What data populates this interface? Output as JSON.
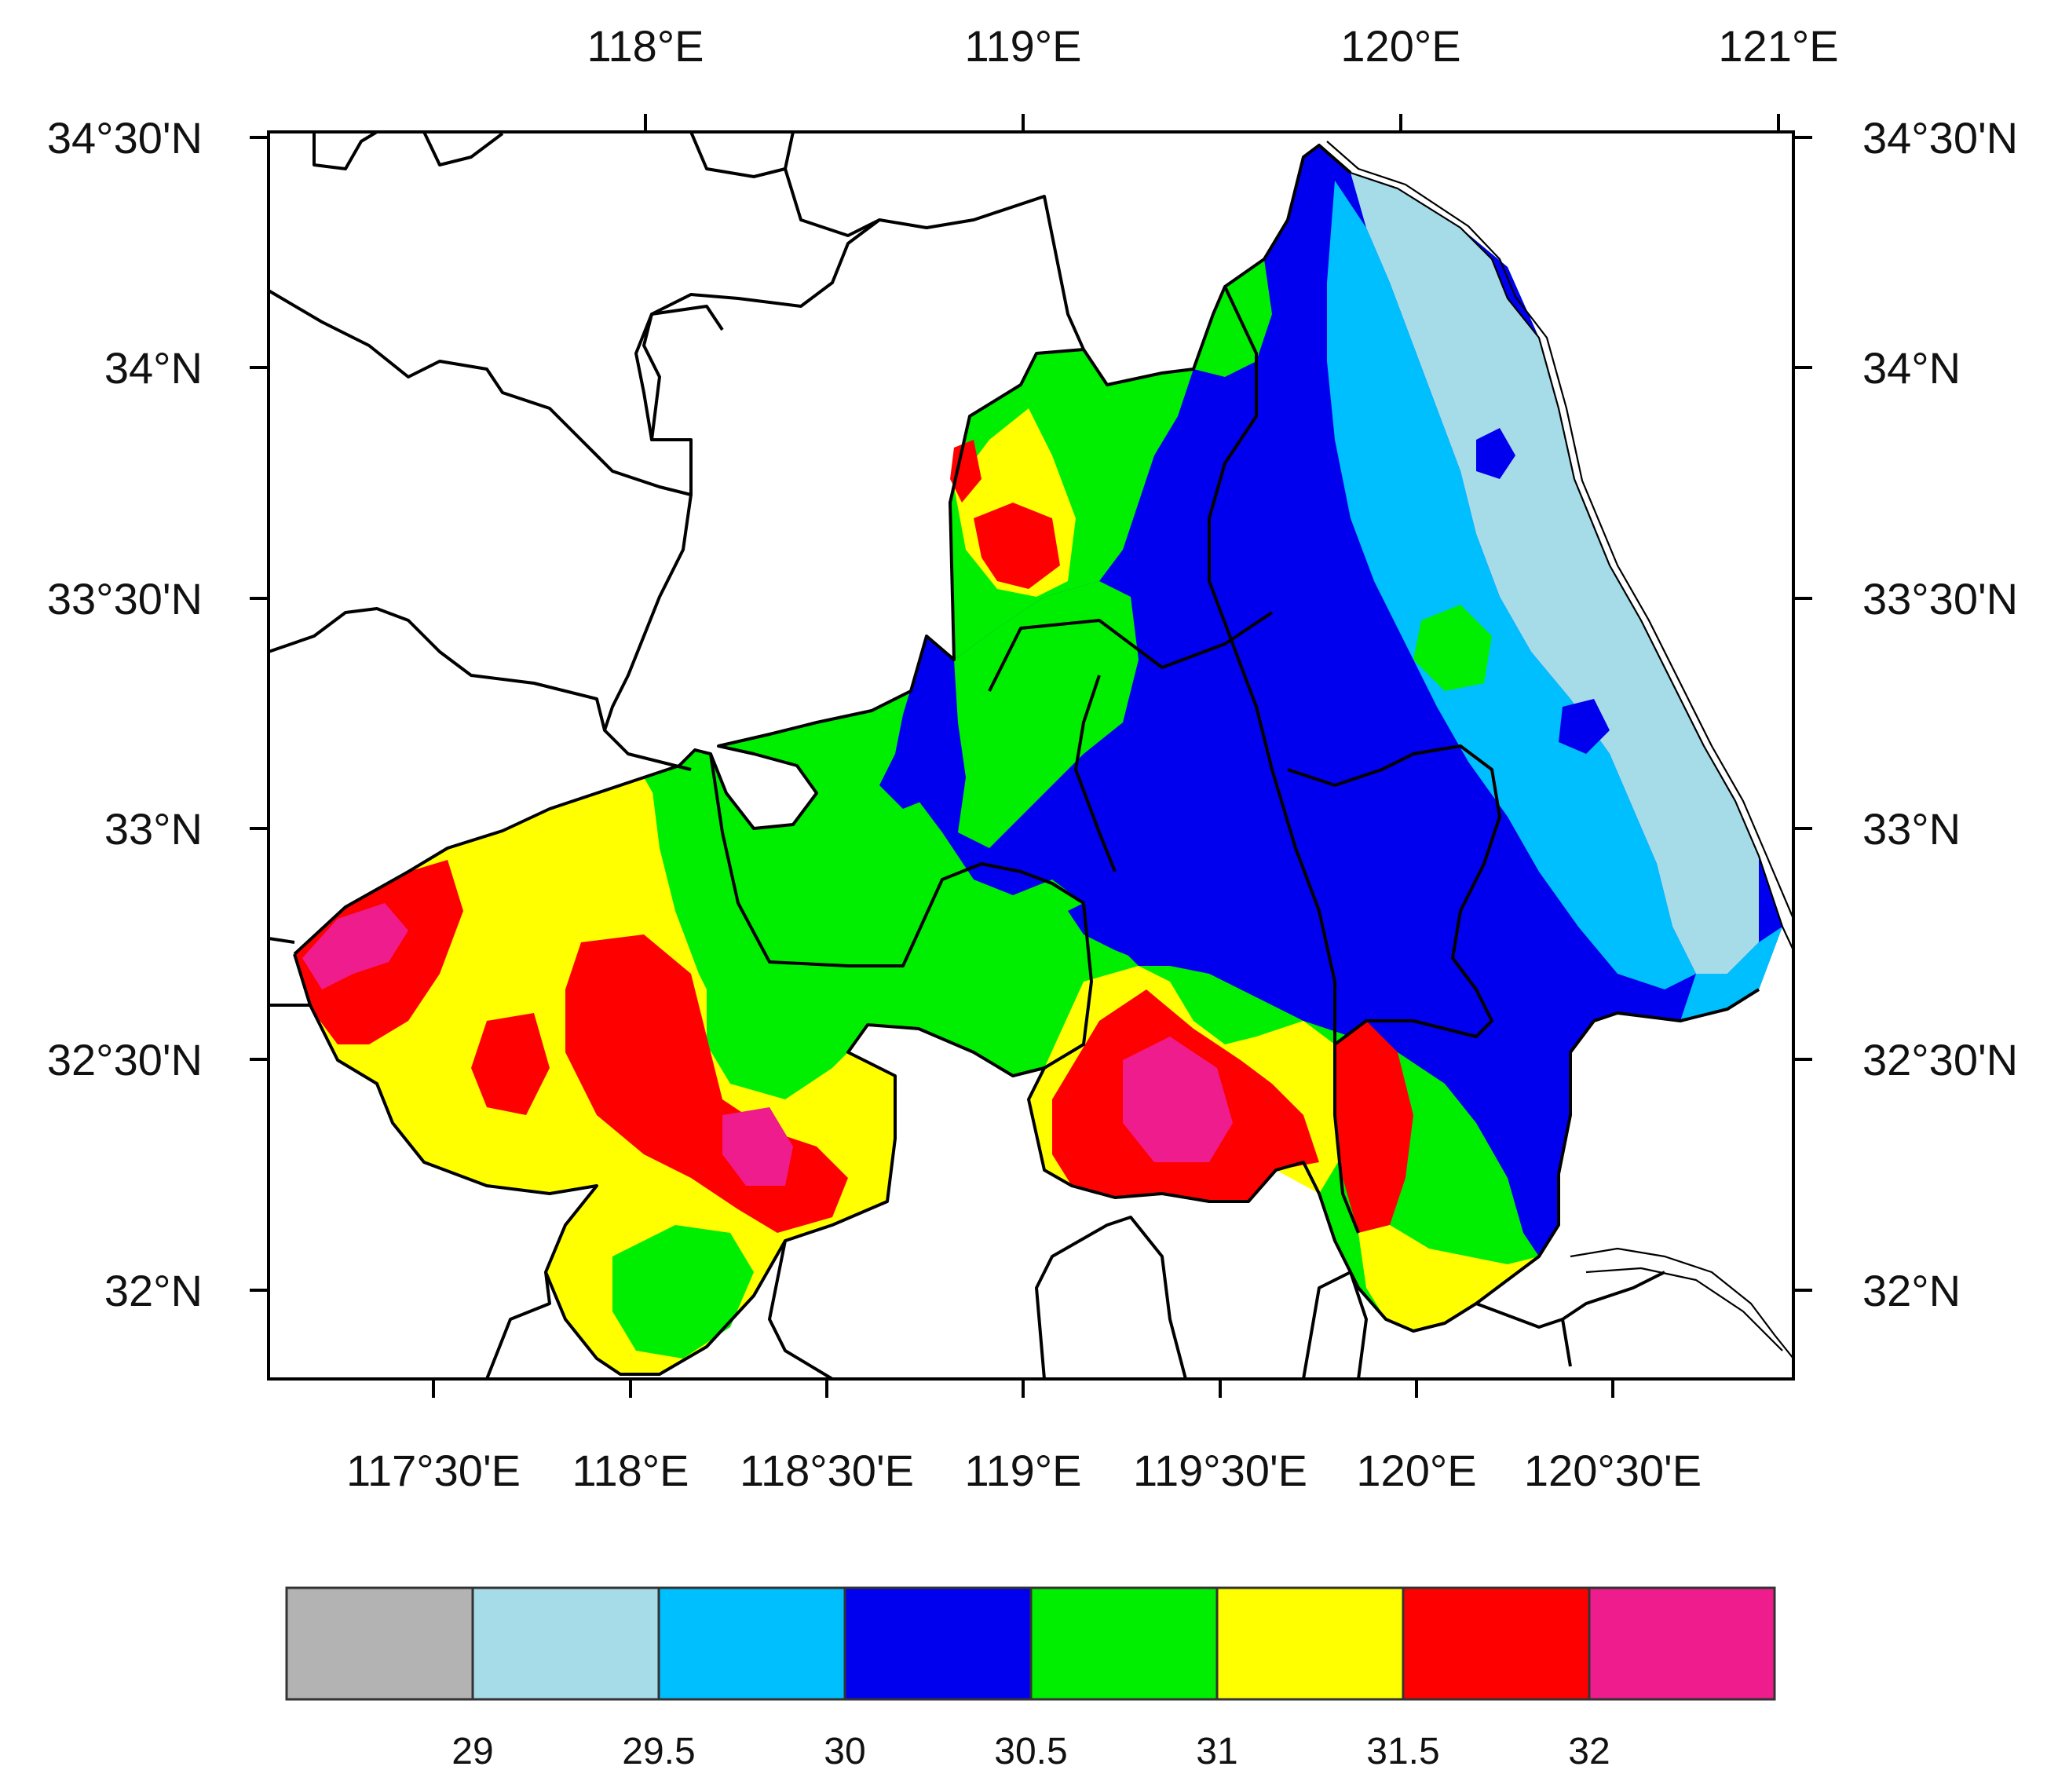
{
  "map": {
    "top_axis_labels": [
      "118°E",
      "119°E",
      "120°E",
      "121°E"
    ],
    "bottom_axis_labels": [
      "117°30'E",
      "118°E",
      "118°30'E",
      "119°E",
      "119°30'E",
      "120°E",
      "120°30'E"
    ],
    "left_axis_labels": [
      "34°30'N",
      "34°N",
      "33°30'N",
      "33°N",
      "32°30'N",
      "32°N"
    ],
    "right_axis_labels": [
      "34°30'N",
      "34°N",
      "33°30'N",
      "33°N",
      "32°30'N",
      "32°N"
    ],
    "colors": {
      "below_29": "#b3b3b3",
      "29_29.5": "#a6dbe8",
      "29.5_30": "#00bfff",
      "30_30.5": "#0000ee",
      "30.5_31": "#00ee00",
      "31_31.5": "#ffff00",
      "31.5_32": "#ff0000",
      "above_32": "#ee1c8c",
      "background": "#ffffff",
      "boundary": "#000000"
    }
  },
  "colorbar": {
    "colors": [
      "#b3b3b3",
      "#a6dbe8",
      "#00bfff",
      "#0000ee",
      "#00ee00",
      "#ffff00",
      "#ff0000",
      "#ee1c8c"
    ],
    "labels": [
      "29",
      "29.5",
      "30",
      "30.5",
      "31",
      "31.5",
      "32"
    ]
  }
}
